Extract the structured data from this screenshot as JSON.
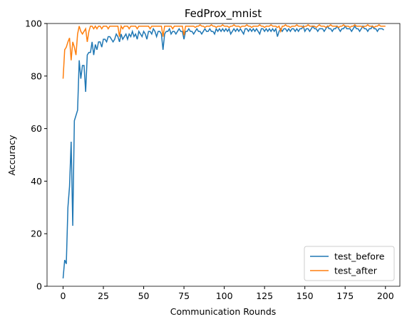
{
  "chart_data": {
    "type": "line",
    "title": "FedProx_mnist",
    "x_label": "Communication Rounds",
    "y_label": "Accuracy",
    "xlim": [
      -9.95,
      208.95
    ],
    "xticks": [
      0,
      25,
      50,
      75,
      100,
      125,
      150,
      175,
      200
    ],
    "ylim": [
      0,
      100
    ],
    "yticks": [
      0,
      20,
      40,
      60,
      80,
      100
    ],
    "legend": "lower right",
    "series": [
      {
        "name": "test_before",
        "color": "#1f77b4",
        "values": [
          3,
          10,
          8.5,
          30,
          38,
          55,
          23,
          63,
          65,
          67,
          86,
          79,
          84,
          84,
          74,
          88,
          89,
          89,
          93,
          88,
          92,
          90,
          93,
          93,
          91,
          94,
          94,
          93,
          95,
          95,
          94,
          93,
          94,
          96,
          95,
          93,
          96,
          94,
          95,
          96,
          94,
          96,
          95,
          97,
          95,
          96,
          94,
          97,
          96,
          95,
          97,
          96,
          94,
          97,
          97,
          96,
          98,
          97,
          95,
          97,
          97,
          96,
          90,
          96,
          97,
          97,
          98,
          96,
          97,
          97,
          96,
          97,
          98,
          97,
          97,
          94,
          97,
          97,
          98,
          97,
          97,
          96,
          97,
          98,
          97,
          97,
          96,
          97,
          98,
          97,
          97,
          98,
          97,
          97,
          96,
          98,
          97,
          98,
          97,
          98,
          97,
          98,
          97,
          98,
          96,
          97,
          98,
          97,
          98,
          97,
          98,
          97,
          96,
          98,
          98,
          97,
          98,
          97,
          98,
          97,
          98,
          97,
          96,
          98,
          98,
          97,
          98,
          97,
          98,
          97,
          98,
          97,
          98,
          95,
          97,
          98,
          97,
          98,
          98,
          97,
          98,
          97,
          98,
          98,
          97,
          98,
          97,
          98,
          98,
          99,
          97,
          98,
          98,
          97,
          98,
          99,
          98,
          98,
          97,
          98,
          98,
          98,
          97,
          98,
          99,
          98,
          98,
          97,
          98,
          98,
          99,
          98,
          97,
          98,
          98,
          99,
          98,
          98,
          98,
          97,
          98,
          99,
          98,
          98,
          97,
          98,
          99,
          98,
          98,
          97,
          98,
          98,
          99,
          98,
          98,
          97,
          98,
          98,
          98,
          97.5
        ]
      },
      {
        "name": "test_after",
        "color": "#ff7f0e",
        "values": [
          79,
          90,
          91,
          93,
          94.5,
          86,
          93,
          91,
          88,
          96,
          99,
          97,
          96,
          97,
          98,
          93,
          97,
          99,
          99,
          98,
          99,
          98,
          99,
          99,
          98,
          99,
          99,
          99,
          98,
          99,
          99,
          99,
          99,
          99,
          99,
          95,
          99,
          98,
          99,
          99,
          99,
          98,
          99,
          99,
          99,
          99,
          98,
          99,
          99,
          99,
          99,
          99,
          99,
          99,
          98,
          99,
          99,
          99,
          99,
          99,
          99,
          99,
          95,
          99,
          99,
          99,
          99,
          99,
          98,
          99,
          99,
          99,
          99,
          99,
          99,
          95.5,
          99,
          99,
          99,
          99,
          99,
          99,
          98.5,
          99,
          99,
          99.5,
          99,
          99,
          98.5,
          99,
          99,
          99,
          99.5,
          99,
          99,
          98.5,
          99,
          99,
          99,
          99.5,
          99,
          99,
          99,
          98.5,
          99,
          99,
          99.5,
          99,
          99,
          99,
          98.5,
          99,
          99,
          99,
          99.5,
          99,
          99,
          98.5,
          99,
          99,
          99,
          99,
          99.5,
          99,
          99,
          98.5,
          99,
          99,
          99,
          99.5,
          99,
          99,
          99,
          98.5,
          99,
          97,
          99,
          99,
          99.5,
          99,
          99,
          98.5,
          99,
          99,
          99,
          99.5,
          99,
          99,
          99,
          98.5,
          99,
          99,
          99.5,
          99,
          99,
          99,
          99,
          98.5,
          99,
          99.5,
          99,
          99,
          99,
          98.5,
          99,
          99,
          99.5,
          99,
          99,
          99,
          99,
          98.5,
          99,
          99,
          99.5,
          99,
          99,
          99,
          98.5,
          99,
          99,
          99.5,
          99,
          99,
          99,
          99,
          98.5,
          99,
          99,
          99.5,
          99,
          99,
          99,
          98.5,
          99,
          99,
          99.5,
          99,
          99,
          99,
          99
        ]
      }
    ]
  }
}
